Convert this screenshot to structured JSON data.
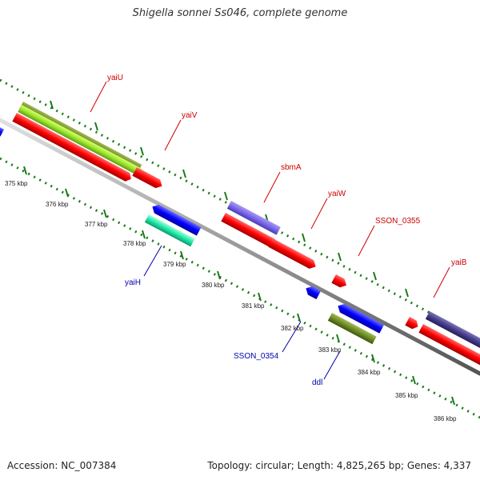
{
  "title": "Shigella sonnei Ss046, complete genome",
  "footer": {
    "accession": "Accession: NC_007384",
    "summary": "Topology: circular; Length: 4,825,265 bp; Genes: 4,337"
  },
  "colors": {
    "forward": "#ff0000",
    "reverse": "#0000ff",
    "backbone": "#999999",
    "ticks": "#1a7a1a",
    "label_forward": "#cc0000",
    "label_reverse": "#0000aa"
  },
  "scale_labels": [
    "375 kbp",
    "376 kbp",
    "377 kbp",
    "378 kbp",
    "379 kbp",
    "380 kbp",
    "381 kbp",
    "382 kbp",
    "383 kbp",
    "384 kbp",
    "385 kbp",
    "386 kbp"
  ],
  "gene_labels": {
    "yaiU": "yaiU",
    "yaiV": "yaiV",
    "sbmA": "sbmA",
    "yaiW": "yaiW",
    "SSON_0355": "SSON_0355",
    "yaiB": "yaiB",
    "yaiH": "yaiH",
    "SSON_0354": "SSON_0354",
    "ddl": "ddl"
  }
}
